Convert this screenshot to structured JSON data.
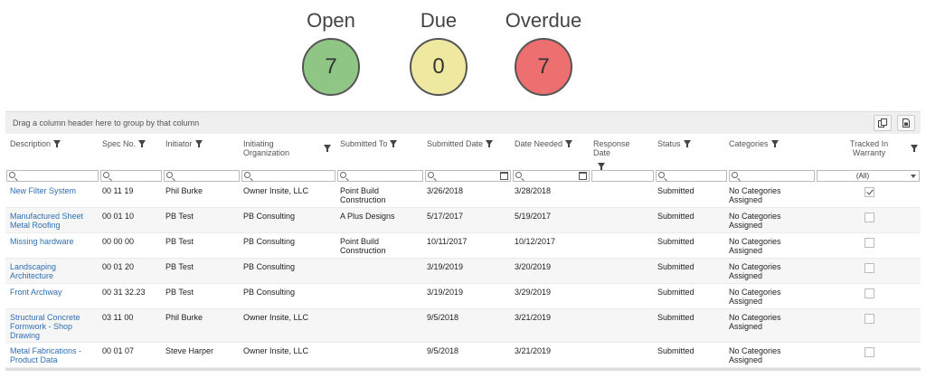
{
  "summary": {
    "open": {
      "label": "Open",
      "count": "7",
      "color": "#8fc585"
    },
    "due": {
      "label": "Due",
      "count": "0",
      "color": "#efe8a0"
    },
    "overdue": {
      "label": "Overdue",
      "count": "7",
      "color": "#ee6f6f"
    }
  },
  "grid": {
    "group_panel_text": "Drag a column header here to group by that column",
    "columns": {
      "description": "Description",
      "spec_no": "Spec No.",
      "initiator": "Initiator",
      "initiating_org": "Initiating Organization",
      "submitted_to": "Submitted To",
      "submitted_date": "Submitted Date",
      "date_needed": "Date Needed",
      "response_date": "Response Date",
      "status": "Status",
      "categories": "Categories",
      "tracked_in_warranty": "Tracked In Warranty"
    },
    "warranty_filter_value": "(All)",
    "rows": [
      {
        "description": "New Filter System",
        "spec_no": "00 11 19",
        "initiator": "Phil Burke",
        "initiating_org": "Owner Insite, LLC",
        "submitted_to": "Point Build Construction",
        "submitted_date": "3/26/2018",
        "date_needed": "3/28/2018",
        "response_date": "",
        "status": "Submitted",
        "categories": "No Categories Assigned",
        "tracked": true
      },
      {
        "description": "Manufactured Sheet Metal Roofing",
        "spec_no": "00 01 10",
        "initiator": "PB Test",
        "initiating_org": "PB Consulting",
        "submitted_to": "A Plus Designs",
        "submitted_date": "5/17/2017",
        "date_needed": "5/19/2017",
        "response_date": "",
        "status": "Submitted",
        "categories": "No Categories Assigned",
        "tracked": false
      },
      {
        "description": "Missing hardware",
        "spec_no": "00 00 00",
        "initiator": "PB Test",
        "initiating_org": "PB Consulting",
        "submitted_to": "Point Build Construction",
        "submitted_date": "10/11/2017",
        "date_needed": "10/12/2017",
        "response_date": "",
        "status": "Submitted",
        "categories": "No Categories Assigned",
        "tracked": false
      },
      {
        "description": "Landscaping Architecture",
        "spec_no": "00 01 20",
        "initiator": "PB Test",
        "initiating_org": "PB Consulting",
        "submitted_to": "",
        "submitted_date": "3/19/2019",
        "date_needed": "3/20/2019",
        "response_date": "",
        "status": "Submitted",
        "categories": "No Categories Assigned",
        "tracked": false
      },
      {
        "description": "Front Archway",
        "spec_no": "00 31 32.23",
        "initiator": "PB Test",
        "initiating_org": "PB Consulting",
        "submitted_to": "",
        "submitted_date": "3/19/2019",
        "date_needed": "3/29/2019",
        "response_date": "",
        "status": "Submitted",
        "categories": "No Categories Assigned",
        "tracked": false
      },
      {
        "description": "Structural Concrete Formwork - Shop Drawing",
        "spec_no": "03 11 00",
        "initiator": "Phil Burke",
        "initiating_org": "Owner Insite, LLC",
        "submitted_to": "",
        "submitted_date": "9/5/2018",
        "date_needed": "3/21/2019",
        "response_date": "",
        "status": "Submitted",
        "categories": "No Categories Assigned",
        "tracked": false
      },
      {
        "description": "Metal Fabrications - Product Data",
        "spec_no": "00 01 07",
        "initiator": "Steve Harper",
        "initiating_org": "Owner Insite, LLC",
        "submitted_to": "",
        "submitted_date": "9/5/2018",
        "date_needed": "3/21/2019",
        "response_date": "",
        "status": "Submitted",
        "categories": "No Categories Assigned",
        "tracked": false
      }
    ]
  }
}
